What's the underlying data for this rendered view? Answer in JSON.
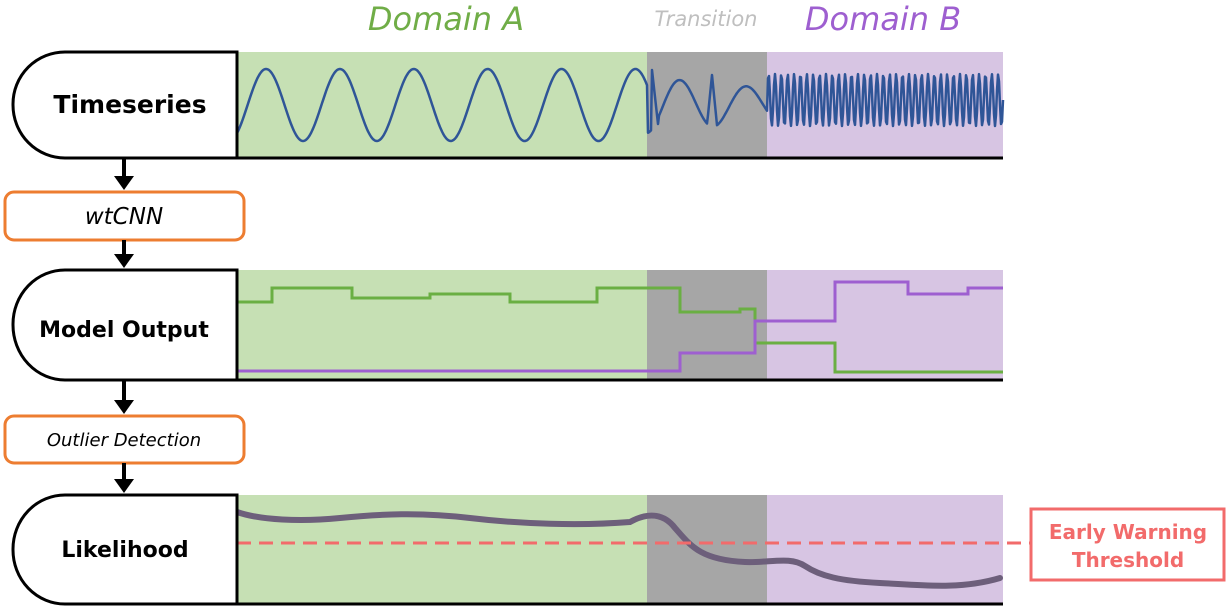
{
  "header": {
    "domain_a": "Domain A",
    "transition": "Transition",
    "domain_b": "Domain B"
  },
  "stages": {
    "timeseries": "Timeseries",
    "model_output": "Model Output",
    "likelihood": "Likelihood"
  },
  "processes": {
    "wtcnn": "wtCNN",
    "outlier_detection": "Outlier Detection"
  },
  "threshold": {
    "line1": "Early Warning",
    "line2": "Threshold"
  },
  "colors": {
    "domain_a_bg": "#c6e0b4",
    "transition_bg": "#a6a6a6",
    "domain_b_bg": "#d7c5e3",
    "domain_a_text": "#70ad47",
    "transition_text": "#bfbfbf",
    "domain_b_text": "#9e5fd0",
    "signal": "#2f5597",
    "green_output": "#6aaf43",
    "purple_output": "#9e5fd0",
    "likelihood_curve": "#6d5f7b",
    "threshold": "#f26b6b",
    "process_border": "#ed7d31"
  }
}
